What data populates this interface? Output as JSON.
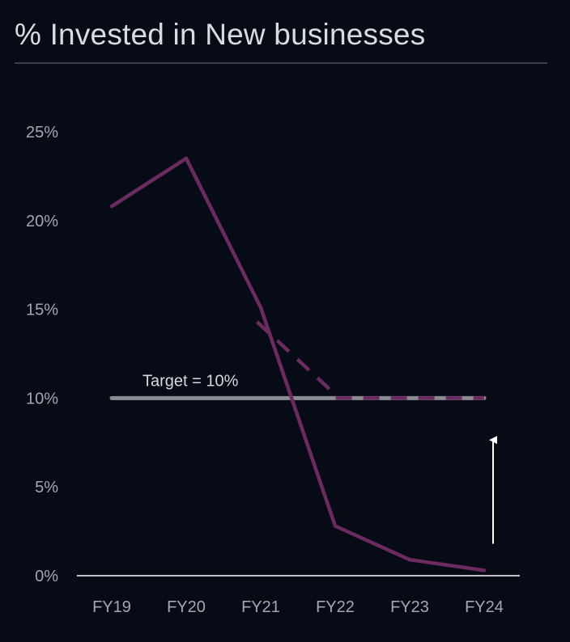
{
  "title": "% Invested in New businesses",
  "chart_data": {
    "type": "line",
    "categories": [
      "FY19",
      "FY20",
      "FY21",
      "FY22",
      "FY23",
      "FY24"
    ],
    "y_ticks": [
      "0%",
      "5%",
      "10%",
      "15%",
      "20%",
      "25%"
    ],
    "ylim": [
      0,
      25
    ],
    "grid": false,
    "series": [
      {
        "style": "solid",
        "color": "#6b2a60",
        "values": [
          20.8,
          23.5,
          15.1,
          2.8,
          0.9,
          0.3
        ]
      },
      {
        "style": "dashed",
        "color": "#6b2a60",
        "x": [
          1.95,
          2.9,
          3.0,
          5.0
        ],
        "values": [
          14.3,
          10.6,
          10.0,
          10.0
        ]
      }
    ],
    "target": {
      "label": "Target = 10%",
      "value": 10,
      "color": "#8a8c92",
      "x_range": [
        "FY19",
        "FY24"
      ]
    },
    "arrow": {
      "category": "FY24",
      "from_value": 1.8,
      "to_value": 8.1,
      "color": "#ffffff"
    }
  }
}
